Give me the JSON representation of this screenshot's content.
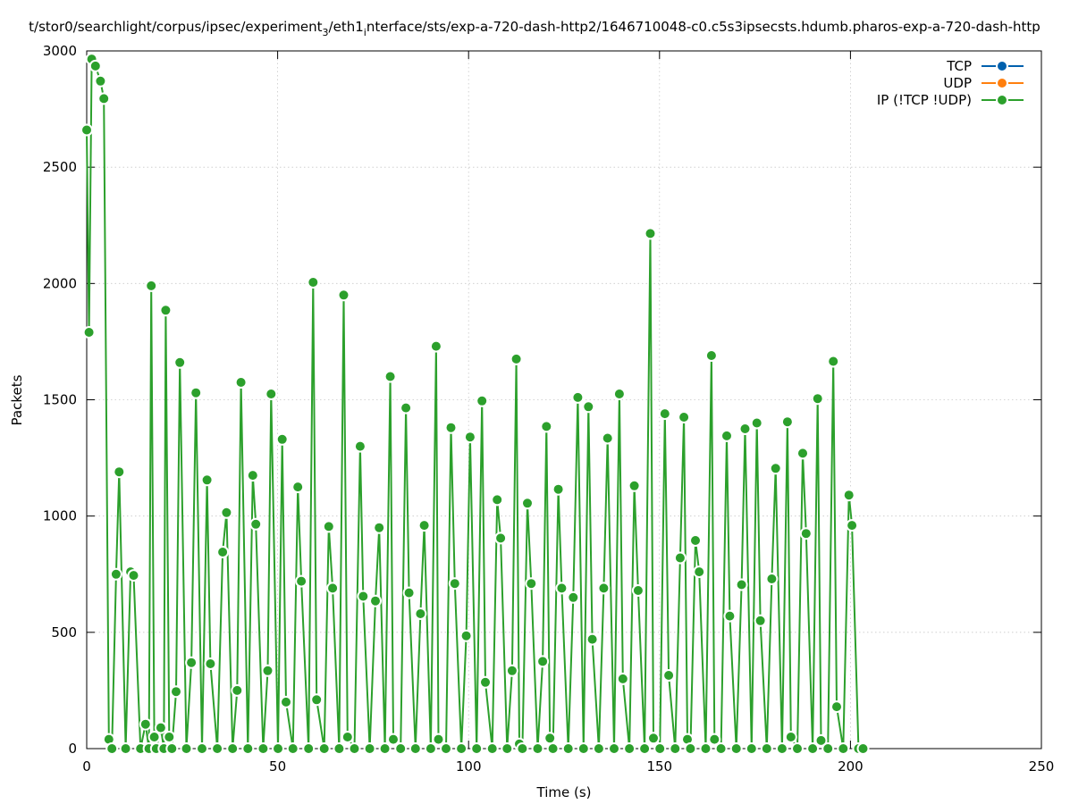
{
  "chart_data": {
    "type": "line",
    "title": "t/stor0/searchlight/corpus/ipsec/experiment3/eth1interface/sts/exp-a-720-dash-http2/1646710048-c0.c5s3ipsecsts.hdumb.pharos-exp-a-720-dash-http",
    "title_parts": {
      "a": "t/stor0/searchlight/corpus/ipsec/experiment",
      "sub1": "3",
      "b": "/eth1",
      "sub2": "i",
      "c": "nterface/sts/exp-a-720-dash-http2/1646710048-c0.c5s3ipsecsts.hdumb.pharos-exp-a-720-dash-http"
    },
    "xlabel": "Time (s)",
    "ylabel": "Packets",
    "xlim": [
      0,
      250
    ],
    "ylim": [
      0,
      3000
    ],
    "xticks": [
      0,
      50,
      100,
      150,
      200,
      250
    ],
    "yticks": [
      0,
      500,
      1000,
      1500,
      2000,
      2500,
      3000
    ],
    "grid": true,
    "legend_position": "top-right",
    "series": [
      {
        "name": "TCP",
        "color": "#0060ad",
        "points": []
      },
      {
        "name": "UDP",
        "color": "#ff7f0e",
        "points": []
      },
      {
        "name": "IP (!TCP  !UDP)",
        "color": "#2ca02c",
        "points": [
          [
            0,
            2660
          ],
          [
            0.6,
            1790
          ],
          [
            1.3,
            2965
          ],
          [
            2.3,
            2935
          ],
          [
            3.6,
            2870
          ],
          [
            4.5,
            2795
          ],
          [
            5.8,
            40
          ],
          [
            6.6,
            0
          ],
          [
            7.7,
            750
          ],
          [
            8.5,
            1190
          ],
          [
            10.2,
            0
          ],
          [
            11.5,
            760
          ],
          [
            12.3,
            745
          ],
          [
            14.1,
            0
          ],
          [
            15.4,
            105
          ],
          [
            16.3,
            0
          ],
          [
            16.9,
            1990
          ],
          [
            17.7,
            50
          ],
          [
            18.2,
            0
          ],
          [
            19.4,
            90
          ],
          [
            20.2,
            0
          ],
          [
            20.7,
            1885
          ],
          [
            21.6,
            50
          ],
          [
            22.3,
            0
          ],
          [
            23.4,
            245
          ],
          [
            24.4,
            1660
          ],
          [
            26.1,
            0
          ],
          [
            27.4,
            370
          ],
          [
            28.6,
            1530
          ],
          [
            30.2,
            0
          ],
          [
            31.5,
            1155
          ],
          [
            32.4,
            365
          ],
          [
            34.2,
            0
          ],
          [
            35.6,
            845
          ],
          [
            36.6,
            1015
          ],
          [
            38.2,
            0
          ],
          [
            39.4,
            250
          ],
          [
            40.4,
            1575
          ],
          [
            42.2,
            0
          ],
          [
            43.5,
            1175
          ],
          [
            44.3,
            965
          ],
          [
            46.2,
            0
          ],
          [
            47.4,
            335
          ],
          [
            48.3,
            1525
          ],
          [
            50.1,
            0
          ],
          [
            51.2,
            1330
          ],
          [
            52.2,
            200
          ],
          [
            54.0,
            0
          ],
          [
            55.3,
            1125
          ],
          [
            56.2,
            720
          ],
          [
            58.1,
            0
          ],
          [
            59.3,
            2005
          ],
          [
            60.2,
            210
          ],
          [
            62.2,
            0
          ],
          [
            63.4,
            955
          ],
          [
            64.4,
            690
          ],
          [
            66.1,
            0
          ],
          [
            67.3,
            1950
          ],
          [
            68.3,
            50
          ],
          [
            70.1,
            0
          ],
          [
            71.6,
            1300
          ],
          [
            72.4,
            655
          ],
          [
            74.1,
            0
          ],
          [
            75.6,
            635
          ],
          [
            76.6,
            950
          ],
          [
            78.1,
            0
          ],
          [
            79.5,
            1600
          ],
          [
            80.3,
            40
          ],
          [
            82.2,
            0
          ],
          [
            83.6,
            1465
          ],
          [
            84.4,
            670
          ],
          [
            86.1,
            0
          ],
          [
            87.4,
            580
          ],
          [
            88.4,
            960
          ],
          [
            90.1,
            0
          ],
          [
            91.5,
            1730
          ],
          [
            92.1,
            40
          ],
          [
            94.1,
            0
          ],
          [
            95.4,
            1380
          ],
          [
            96.4,
            710
          ],
          [
            98.1,
            0
          ],
          [
            99.4,
            485
          ],
          [
            100.4,
            1340
          ],
          [
            102.1,
            0
          ],
          [
            103.5,
            1495
          ],
          [
            104.4,
            285
          ],
          [
            106.2,
            0
          ],
          [
            107.5,
            1070
          ],
          [
            108.4,
            905
          ],
          [
            110.1,
            0
          ],
          [
            111.4,
            335
          ],
          [
            112.5,
            1675
          ],
          [
            113.3,
            20
          ],
          [
            114.1,
            0
          ],
          [
            115.4,
            1055
          ],
          [
            116.4,
            710
          ],
          [
            118.1,
            0
          ],
          [
            119.4,
            375
          ],
          [
            120.4,
            1385
          ],
          [
            121.3,
            45
          ],
          [
            122.1,
            0
          ],
          [
            123.5,
            1115
          ],
          [
            124.4,
            690
          ],
          [
            126.1,
            0
          ],
          [
            127.4,
            650
          ],
          [
            128.6,
            1510
          ],
          [
            130.1,
            0
          ],
          [
            131.4,
            1470
          ],
          [
            132.4,
            470
          ],
          [
            134.1,
            0
          ],
          [
            135.4,
            690
          ],
          [
            136.4,
            1335
          ],
          [
            138.1,
            0
          ],
          [
            139.5,
            1525
          ],
          [
            140.4,
            300
          ],
          [
            142.1,
            0
          ],
          [
            143.4,
            1130
          ],
          [
            144.4,
            680
          ],
          [
            146.1,
            0
          ],
          [
            147.6,
            2215
          ],
          [
            148.4,
            45
          ],
          [
            150.1,
            0
          ],
          [
            151.4,
            1440
          ],
          [
            152.4,
            315
          ],
          [
            154.1,
            0
          ],
          [
            155.4,
            820
          ],
          [
            156.4,
            1425
          ],
          [
            157.3,
            40
          ],
          [
            158.1,
            0
          ],
          [
            159.4,
            895
          ],
          [
            160.4,
            760
          ],
          [
            162.1,
            0
          ],
          [
            163.6,
            1690
          ],
          [
            164.4,
            40
          ],
          [
            166.1,
            0
          ],
          [
            167.6,
            1345
          ],
          [
            168.4,
            570
          ],
          [
            170.1,
            0
          ],
          [
            171.5,
            705
          ],
          [
            172.4,
            1375
          ],
          [
            174.1,
            0
          ],
          [
            175.5,
            1400
          ],
          [
            176.4,
            550
          ],
          [
            178.1,
            0
          ],
          [
            179.4,
            730
          ],
          [
            180.4,
            1205
          ],
          [
            182.1,
            0
          ],
          [
            183.5,
            1405
          ],
          [
            184.4,
            50
          ],
          [
            186.1,
            0
          ],
          [
            187.5,
            1270
          ],
          [
            188.4,
            925
          ],
          [
            190.1,
            0
          ],
          [
            191.4,
            1505
          ],
          [
            192.3,
            35
          ],
          [
            194.1,
            0
          ],
          [
            195.5,
            1665
          ],
          [
            196.4,
            180
          ],
          [
            198.1,
            0
          ],
          [
            199.6,
            1090
          ],
          [
            200.4,
            960
          ],
          [
            202.1,
            0
          ],
          [
            203.3,
            0
          ]
        ]
      }
    ]
  }
}
